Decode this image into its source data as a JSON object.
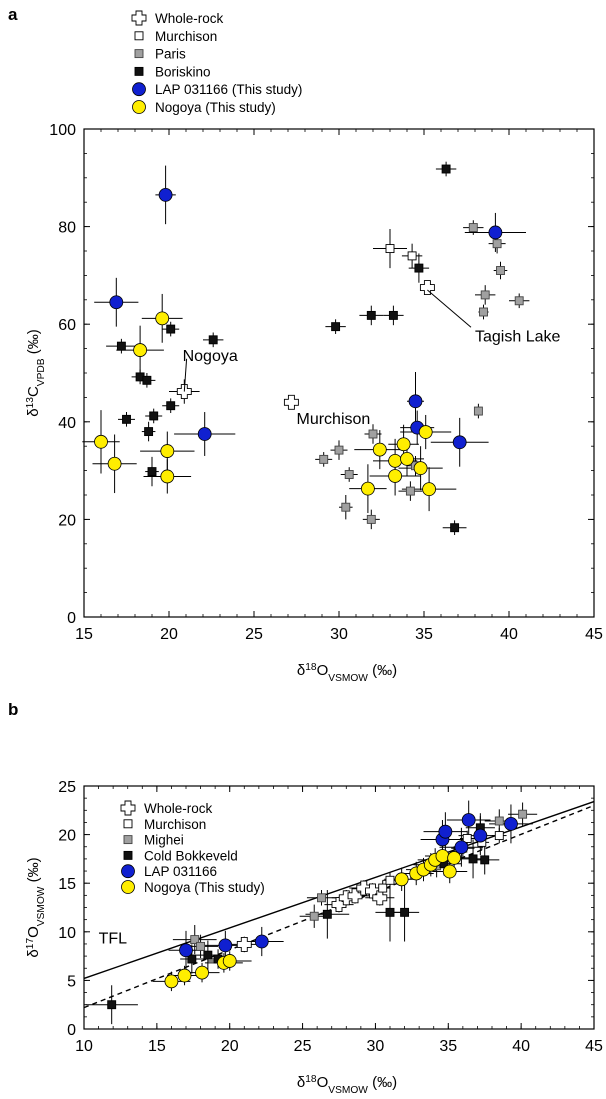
{
  "chart_data": [
    {
      "panel": "a",
      "type": "scatter",
      "xlabel": "δ18O_VSMOW (‰)",
      "ylabel": "δ13C_VPDB (‰)",
      "xlim": [
        15,
        45
      ],
      "ylim": [
        0,
        100
      ],
      "xticks": [
        15,
        20,
        25,
        30,
        35,
        40,
        45
      ],
      "yticks": [
        0,
        20,
        40,
        60,
        80,
        100
      ],
      "grid": false,
      "legend_position": "above",
      "legend": [
        {
          "label": "Whole-rock",
          "marker": "cross-white"
        },
        {
          "label": "Murchison",
          "marker": "square-white"
        },
        {
          "label": "Paris",
          "marker": "square-gray"
        },
        {
          "label": "Boriskino",
          "marker": "square-black"
        },
        {
          "label": "LAP 031166 (This study)",
          "marker": "circle-blue"
        },
        {
          "label": "Nogoya (This study)",
          "marker": "circle-yellow"
        }
      ],
      "annotations": [
        {
          "text": "Nogoya",
          "x": 20.8,
          "y": 52.5,
          "arrow_to": [
            20.9,
            46.2
          ]
        },
        {
          "text": "Murchison",
          "x": 27.5,
          "y": 39.5
        },
        {
          "text": "Tagish Lake",
          "x": 38.0,
          "y": 56.5,
          "arrow_to": [
            35.2,
            67.0
          ]
        }
      ],
      "series": [
        {
          "name": "Whole-rock",
          "marker": "cross-white",
          "points": [
            [
              20.9,
              46.2,
              0.9,
              2.5
            ],
            [
              27.2,
              44.0,
              0,
              0
            ],
            [
              35.2,
              67.5,
              0,
              0
            ]
          ]
        },
        {
          "name": "Murchison",
          "marker": "square-white",
          "points": [
            [
              33.0,
              75.5,
              1.0,
              4.0
            ],
            [
              34.3,
              74.0,
              0.6,
              2.5
            ]
          ]
        },
        {
          "name": "Paris",
          "marker": "square-gray",
          "points": [
            [
              37.9,
              79.8,
              0.6,
              1.5
            ],
            [
              39.3,
              76.5,
              0.5,
              2.0
            ],
            [
              39.5,
              71.0,
              0.4,
              1.8
            ],
            [
              38.6,
              66.0,
              0.6,
              2.0
            ],
            [
              38.5,
              62.5,
              0.3,
              1.5
            ],
            [
              40.6,
              64.8,
              0.6,
              1.5
            ],
            [
              38.2,
              42.2,
              0.2,
              1.5
            ],
            [
              32.0,
              37.5,
              0.5,
              2.0
            ],
            [
              30.0,
              34.2,
              0.5,
              2.0
            ],
            [
              29.1,
              32.3,
              0.5,
              1.5
            ],
            [
              30.6,
              29.2,
              0.5,
              1.5
            ],
            [
              30.4,
              22.5,
              0.4,
              2.5
            ],
            [
              31.9,
              20.0,
              0.5,
              2.0
            ],
            [
              34.2,
              25.8,
              0.7,
              2.0
            ],
            [
              34.5,
              31.0,
              0.5,
              2.0
            ]
          ]
        },
        {
          "name": "Boriskino",
          "marker": "square-black",
          "points": [
            [
              17.2,
              55.5,
              0.9,
              1.5
            ],
            [
              18.3,
              49.2,
              0.5,
              1.5
            ],
            [
              18.7,
              48.5,
              0.5,
              1.5
            ],
            [
              20.1,
              59.0,
              0.5,
              1.5
            ],
            [
              22.6,
              56.8,
              0.6,
              1.5
            ],
            [
              17.5,
              40.5,
              0.5,
              1.5
            ],
            [
              19.1,
              41.2,
              0.5,
              1.5
            ],
            [
              20.1,
              43.3,
              0.5,
              1.5
            ],
            [
              18.8,
              38.0,
              0.4,
              2.0
            ],
            [
              19.0,
              29.8,
              0.4,
              3.0
            ],
            [
              29.8,
              59.5,
              0.6,
              1.5
            ],
            [
              31.9,
              61.8,
              0.7,
              2.0
            ],
            [
              33.2,
              61.8,
              0.6,
              2.0
            ],
            [
              34.7,
              71.5,
              0.6,
              3.0
            ],
            [
              36.3,
              91.8,
              0.6,
              1.5
            ],
            [
              36.8,
              18.3,
              0.7,
              1.5
            ]
          ]
        },
        {
          "name": "LAP 031166 (This study)",
          "marker": "circle-blue",
          "points": [
            [
              19.8,
              86.5,
              0.6,
              6.0
            ],
            [
              16.9,
              64.5,
              1.3,
              5.0
            ],
            [
              22.1,
              37.5,
              1.8,
              4.5
            ],
            [
              39.2,
              78.8,
              1.8,
              4.0
            ],
            [
              34.5,
              44.2,
              0.5,
              6.0
            ],
            [
              34.6,
              38.8,
              1.0,
              3.5
            ],
            [
              37.1,
              35.8,
              1.7,
              5.0
            ]
          ]
        },
        {
          "name": "Nogoya (This study)",
          "marker": "circle-yellow",
          "points": [
            [
              19.6,
              61.2,
              1.2,
              5.0
            ],
            [
              18.3,
              54.7,
              1.4,
              5.0
            ],
            [
              16.0,
              35.9,
              1.1,
              6.5
            ],
            [
              16.8,
              31.4,
              1.3,
              6.0
            ],
            [
              19.9,
              34.0,
              1.6,
              4.0
            ],
            [
              19.9,
              28.8,
              1.4,
              3.5
            ],
            [
              31.7,
              26.3,
              1.1,
              5.0
            ],
            [
              32.4,
              34.3,
              1.5,
              4.0
            ],
            [
              33.3,
              32.0,
              1.3,
              4.5
            ],
            [
              33.3,
              28.9,
              1.5,
              4.0
            ],
            [
              33.8,
              35.4,
              0.9,
              4.0
            ],
            [
              34.0,
              32.4,
              1.0,
              3.5
            ],
            [
              34.8,
              30.5,
              1.3,
              4.5
            ],
            [
              35.1,
              37.9,
              1.5,
              3.5
            ],
            [
              35.3,
              26.2,
              1.6,
              4.5
            ]
          ]
        }
      ]
    },
    {
      "panel": "b",
      "type": "scatter",
      "xlabel": "δ18O_VSMOW (‰)",
      "ylabel": "δ17O_VSMOW (‰)",
      "xlim": [
        10,
        45
      ],
      "ylim": [
        0,
        25
      ],
      "xticks": [
        10,
        15,
        20,
        25,
        30,
        35,
        40,
        45
      ],
      "yticks": [
        0,
        5,
        10,
        15,
        20,
        25
      ],
      "grid": false,
      "legend_position": "top-left",
      "legend": [
        {
          "label": "Whole-rock",
          "marker": "cross-white"
        },
        {
          "label": "Murchison",
          "marker": "square-white"
        },
        {
          "label": "Mighei",
          "marker": "square-gray"
        },
        {
          "label": "Cold Bokkeveld",
          "marker": "square-black"
        },
        {
          "label": "LAP 031166",
          "marker": "circle-blue"
        },
        {
          "label": "Nogoya (This study)",
          "marker": "circle-yellow"
        }
      ],
      "lines": [
        {
          "label": "TFL",
          "style": "solid",
          "from": [
            10,
            5.2
          ],
          "to": [
            45,
            23.4
          ],
          "label_at": [
            11.0,
            8.8
          ]
        },
        {
          "label": "",
          "style": "dashed",
          "from": [
            10,
            2.2
          ],
          "to": [
            45,
            23.0
          ]
        }
      ],
      "series": [
        {
          "name": "Whole-rock",
          "marker": "cross-white",
          "points": [
            [
              21.0,
              8.7,
              1.2,
              0.8
            ],
            [
              27.5,
              12.8,
              1.0,
              0.8
            ],
            [
              28.0,
              13.5,
              1.0,
              0.8
            ],
            [
              28.6,
              13.7,
              1.0,
              0.8
            ],
            [
              29.2,
              14.5,
              1.0,
              0.8
            ],
            [
              29.8,
              14.2,
              1.0,
              0.8
            ],
            [
              30.3,
              13.5,
              1.0,
              0.8
            ]
          ]
        },
        {
          "name": "Murchison",
          "marker": "square-white",
          "points": [
            [
              30.5,
              14.5,
              0.5,
              0.8
            ],
            [
              31.0,
              15.3,
              0.5,
              0.8
            ],
            [
              36.3,
              19.6,
              0.5,
              0.8
            ],
            [
              37.3,
              19.2,
              0.5,
              0.8
            ],
            [
              38.5,
              19.9,
              0.5,
              0.8
            ]
          ]
        },
        {
          "name": "Mighei",
          "marker": "square-gray",
          "points": [
            [
              17.6,
              9.2,
              1.5,
              1.5
            ],
            [
              18.0,
              8.5,
              1.2,
              1.2
            ],
            [
              25.8,
              11.6,
              1.0,
              1.2
            ],
            [
              26.3,
              13.5,
              1.0,
              0.8
            ],
            [
              34.2,
              16.8,
              1.0,
              1.2
            ],
            [
              36.0,
              18.6,
              0.8,
              1.0
            ],
            [
              38.5,
              21.4,
              1.0,
              1.2
            ],
            [
              40.1,
              22.1,
              1.0,
              1.2
            ]
          ]
        },
        {
          "name": "Cold Bokkeveld",
          "marker": "square-black",
          "points": [
            [
              11.9,
              2.5,
              1.8,
              2.0
            ],
            [
              17.4,
              7.2,
              0.8,
              1.5
            ],
            [
              18.5,
              7.6,
              0.8,
              1.5
            ],
            [
              19.2,
              7.2,
              0.8,
              1.0
            ],
            [
              26.7,
              11.8,
              1.5,
              2.5
            ],
            [
              31.0,
              12.0,
              1.0,
              3.0
            ],
            [
              32.0,
              12.0,
              1.0,
              3.0
            ],
            [
              36.7,
              17.5,
              1.0,
              2.0
            ],
            [
              37.2,
              20.7,
              1.0,
              1.5
            ],
            [
              34.7,
              17.0,
              1.2,
              1.2
            ],
            [
              37.5,
              17.4,
              1.0,
              1.5
            ]
          ]
        },
        {
          "name": "LAP 031166",
          "marker": "circle-blue",
          "points": [
            [
              17.0,
              8.1,
              1.2,
              2.0
            ],
            [
              19.7,
              8.6,
              1.5,
              1.5
            ],
            [
              22.2,
              9.0,
              1.5,
              1.5
            ],
            [
              34.6,
              19.5,
              1.5,
              2.0
            ],
            [
              34.8,
              20.3,
              1.5,
              2.0
            ],
            [
              35.9,
              18.7,
              1.5,
              2.0
            ],
            [
              36.4,
              21.5,
              1.5,
              2.0
            ],
            [
              37.2,
              19.9,
              1.5,
              2.0
            ],
            [
              39.3,
              21.1,
              1.5,
              2.0
            ]
          ]
        },
        {
          "name": "Nogoya (This study)",
          "marker": "circle-yellow",
          "points": [
            [
              16.0,
              4.9,
              1.3,
              1.0
            ],
            [
              16.9,
              5.5,
              1.2,
              1.0
            ],
            [
              18.1,
              5.8,
              1.2,
              1.0
            ],
            [
              19.6,
              6.8,
              1.3,
              1.0
            ],
            [
              20.0,
              7.0,
              1.5,
              1.0
            ],
            [
              31.8,
              15.4,
              1.2,
              1.2
            ],
            [
              32.8,
              16.0,
              1.2,
              1.2
            ],
            [
              33.3,
              16.4,
              1.2,
              1.2
            ],
            [
              33.8,
              16.9,
              1.2,
              1.2
            ],
            [
              34.1,
              17.4,
              1.2,
              1.2
            ],
            [
              34.6,
              17.8,
              1.2,
              1.2
            ],
            [
              35.1,
              16.2,
              1.2,
              1.2
            ],
            [
              35.4,
              17.6,
              1.2,
              1.2
            ]
          ]
        }
      ]
    }
  ],
  "panel_labels": {
    "a": "a",
    "b": "b"
  },
  "colors": {
    "blue": "#1020d0",
    "yellow": "#ffee00",
    "gray": "#a0a0a0",
    "black": "#111111",
    "axis": "#000000"
  }
}
